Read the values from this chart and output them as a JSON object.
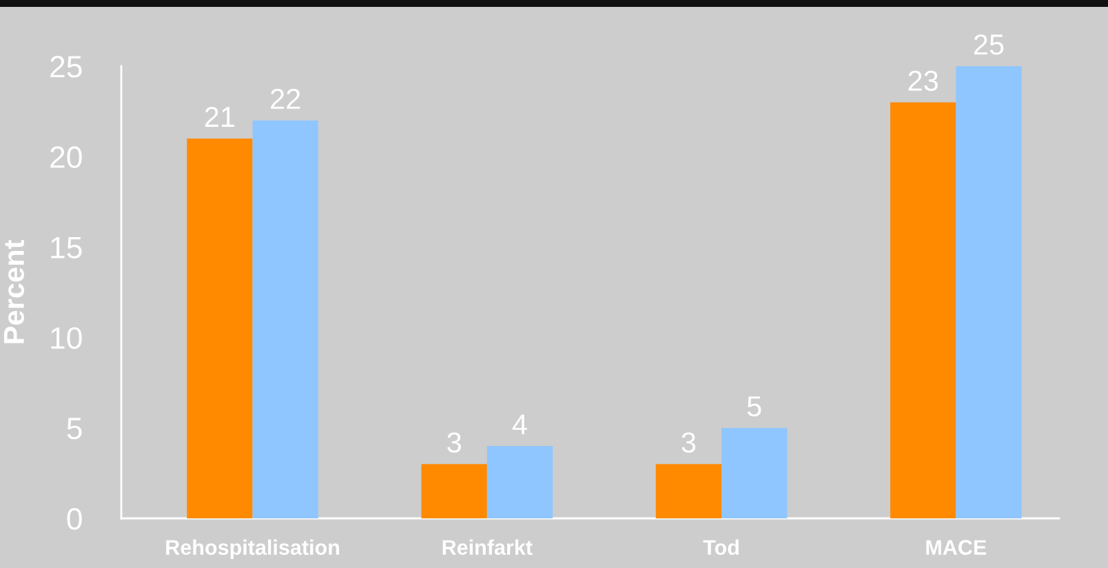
{
  "chart_data": {
    "type": "bar",
    "ylabel": "Percent",
    "categories": [
      "Rehospitalisation",
      "Reinfarkt",
      "Tod",
      "MACE"
    ],
    "series": [
      {
        "color": "#ff8a00",
        "values": [
          21,
          3,
          3,
          23
        ]
      },
      {
        "color": "#8fc6ff",
        "values": [
          22,
          4,
          5,
          25
        ]
      }
    ],
    "ylim": [
      0,
      25
    ],
    "yticks": [
      0,
      5,
      10,
      15,
      20,
      25
    ],
    "data_labels": true
  }
}
